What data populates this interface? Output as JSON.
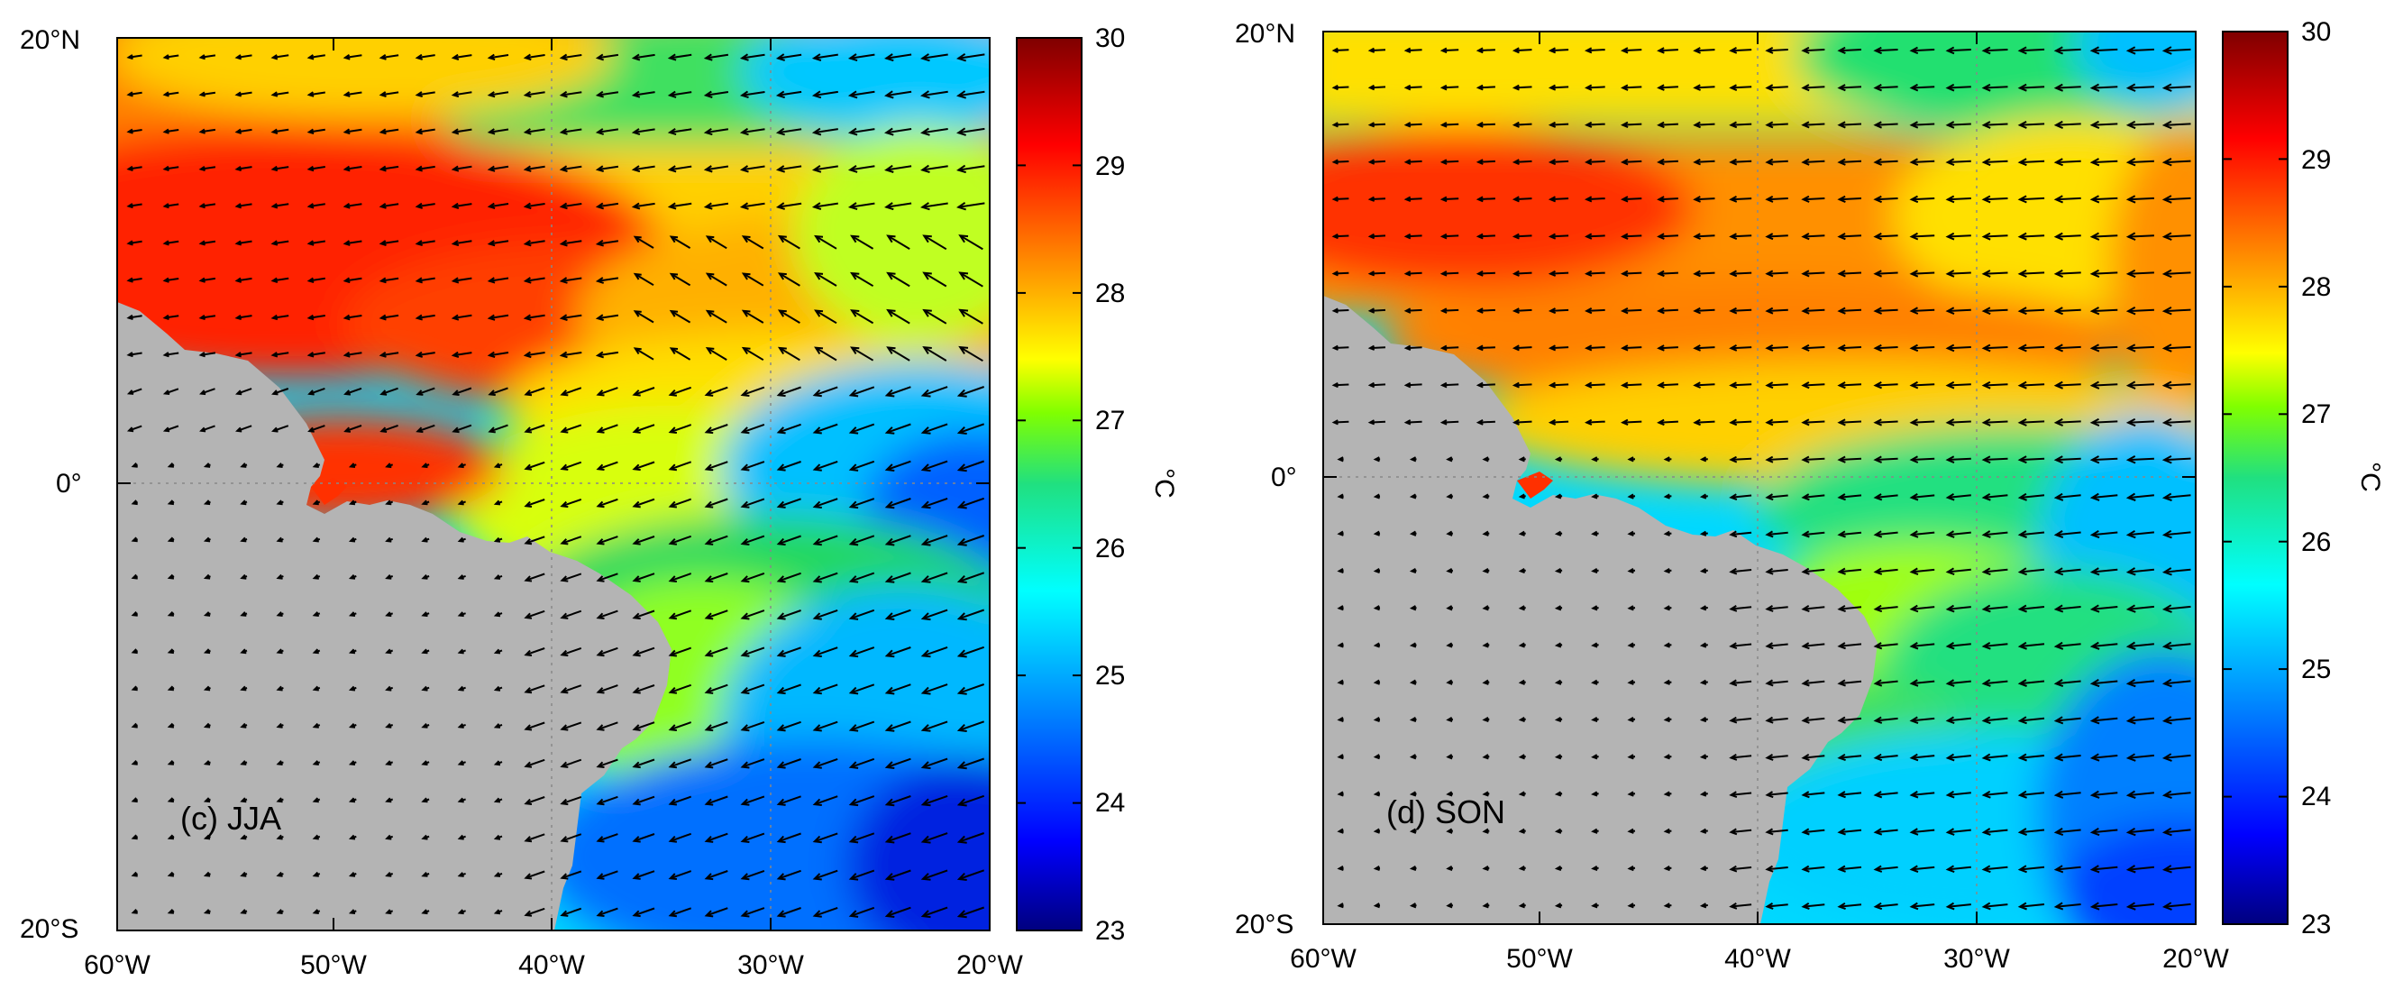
{
  "panels": [
    {
      "id": "jja",
      "label": "(c) JJA",
      "lat_labels": [
        "20°N",
        "0°",
        "20°S"
      ],
      "lon_labels": [
        "60°W",
        "50°W",
        "40°W",
        "30°W",
        "20°W"
      ],
      "colorbar": {
        "ticks": [
          "30",
          "29",
          "28",
          "27",
          "26",
          "25",
          "24",
          "23"
        ],
        "unit": "°C"
      }
    },
    {
      "id": "son",
      "label": "(d) SON",
      "lat_labels": [
        "20°N",
        "0°",
        "20°S"
      ],
      "lon_labels": [
        "60°W",
        "50°W",
        "40°W",
        "30°W",
        "20°W"
      ],
      "colorbar": {
        "ticks": [
          "30",
          "29",
          "28",
          "27",
          "26",
          "25",
          "24",
          "23"
        ],
        "unit": "°C"
      }
    }
  ],
  "colors": {
    "land": "#b4b4b4",
    "sst_scale": [
      "#00007f",
      "#0000ff",
      "#0080ff",
      "#00ffff",
      "#20e080",
      "#80ff00",
      "#ffff00",
      "#ff8000",
      "#ff0000",
      "#7f0000"
    ]
  },
  "map_extent": {
    "lon": [
      -60,
      -20
    ],
    "lat": [
      -20,
      20
    ]
  },
  "sst_range_degC": [
    23,
    30
  ]
}
